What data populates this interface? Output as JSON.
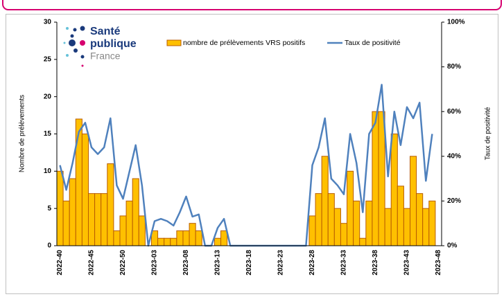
{
  "chart_data": {
    "type": "bar_line",
    "logo": [
      "Santé",
      "publique",
      "France"
    ],
    "ylabel": "Nombre de prélèvements",
    "y2label": "Taux de positivité",
    "categories": [
      "2022-40",
      null,
      null,
      null,
      null,
      "2022-45",
      null,
      null,
      null,
      null,
      "2022-50",
      null,
      null,
      null,
      null,
      "2023-03",
      null,
      null,
      null,
      null,
      "2023-08",
      null,
      null,
      null,
      null,
      "2023-13",
      null,
      null,
      null,
      null,
      "2023-18",
      null,
      null,
      null,
      null,
      "2023-23",
      null,
      null,
      null,
      null,
      "2023-28",
      null,
      null,
      null,
      null,
      "2023-33",
      null,
      null,
      null,
      null,
      "2023-38",
      null,
      null,
      null,
      null,
      "2023-43",
      null,
      null,
      null,
      null,
      "2023-48"
    ],
    "series": [
      {
        "name": "nombre de prélèvements VRS positifs",
        "color": "#ffc000",
        "edge": "#b85c00",
        "values": [
          10,
          6,
          9,
          17,
          15,
          7,
          7,
          7,
          11,
          2,
          4,
          6,
          9,
          4,
          0,
          2,
          1,
          1,
          1,
          2,
          2,
          3,
          2,
          0,
          0,
          1,
          2,
          0,
          0,
          0,
          0,
          0,
          0,
          0,
          0,
          0,
          0,
          0,
          0,
          0,
          4,
          7,
          12,
          7,
          5,
          3,
          10,
          6,
          1,
          6,
          18,
          18,
          5,
          15,
          8,
          5,
          12,
          7,
          5,
          6,
          null
        ]
      },
      {
        "name": "Taux de positivité",
        "color": "#4f81bd",
        "axis": "y2",
        "values": [
          36,
          25,
          37,
          51,
          55,
          44,
          41,
          44,
          57,
          27,
          21,
          33,
          45,
          27,
          0,
          11,
          12,
          11,
          9,
          15,
          22,
          13,
          14,
          0,
          0,
          8,
          12,
          0,
          0,
          0,
          0,
          0,
          0,
          0,
          0,
          0,
          0,
          0,
          0,
          0,
          36,
          44,
          57,
          30,
          27,
          23,
          50,
          37,
          15,
          50,
          55,
          72,
          31,
          60,
          45,
          62,
          57,
          64,
          29,
          50,
          null
        ]
      }
    ],
    "ylim": [
      0,
      30
    ],
    "yticks": [
      0,
      5,
      10,
      15,
      20,
      25,
      30
    ],
    "y2lim": [
      0,
      100
    ],
    "y2ticks": [
      {
        "value": 0,
        "label": "0%"
      },
      {
        "value": 20,
        "label": "20%"
      },
      {
        "value": 40,
        "label": "40%"
      },
      {
        "value": 60,
        "label": "60%"
      },
      {
        "value": 80,
        "label": "80%"
      },
      {
        "value": 100,
        "label": "100%"
      }
    ]
  }
}
